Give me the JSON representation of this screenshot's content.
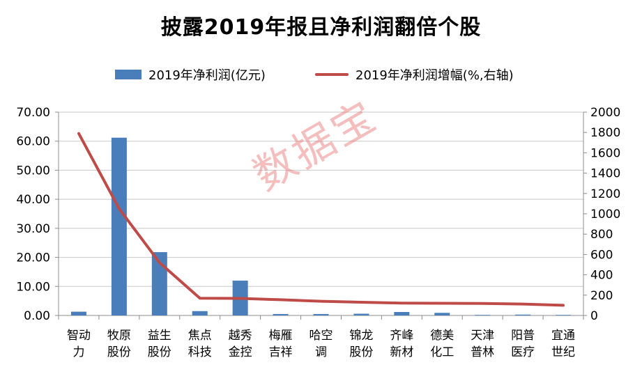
{
  "chart_data": {
    "type": "bar",
    "title": "披露2019年报且净利润翻倍个股",
    "watermark": "数据宝",
    "categories": [
      [
        "智动",
        "力"
      ],
      [
        "牧原",
        "股份"
      ],
      [
        "益生",
        "股份"
      ],
      [
        "焦点",
        "科技"
      ],
      [
        "越秀",
        "金控"
      ],
      [
        "梅雁",
        "吉祥"
      ],
      [
        "哈空",
        "调"
      ],
      [
        "锦龙",
        "股份"
      ],
      [
        "齐峰",
        "新材"
      ],
      [
        "德美",
        "化工"
      ],
      [
        "天津",
        "普林"
      ],
      [
        "阳普",
        "医疗"
      ],
      [
        "宜通",
        "世纪"
      ]
    ],
    "series": [
      {
        "name": "2019年净利润(亿元)",
        "type": "bar",
        "axis": "left",
        "color": "#4a7ebb",
        "values": [
          1.3,
          61.2,
          21.8,
          1.5,
          12.0,
          0.5,
          0.5,
          0.6,
          1.2,
          0.9,
          0.2,
          0.3,
          0.2
        ]
      },
      {
        "name": "2019年净利润增幅(%,右轴)",
        "type": "line",
        "axis": "right",
        "color": "#be4b48",
        "values": [
          1790,
          1050,
          520,
          170,
          168,
          155,
          140,
          130,
          122,
          120,
          118,
          112,
          100
        ]
      }
    ],
    "y_left": {
      "min": 0,
      "max": 70,
      "step": 10,
      "ticks": [
        "0.00",
        "10.00",
        "20.00",
        "30.00",
        "40.00",
        "50.00",
        "60.00",
        "70.00"
      ]
    },
    "y_right": {
      "min": 0,
      "max": 2000,
      "step": 200,
      "ticks": [
        "0",
        "200",
        "400",
        "600",
        "800",
        "1000",
        "1200",
        "1400",
        "1600",
        "1800",
        "2000"
      ]
    },
    "grid": true,
    "legend_position": "top"
  }
}
